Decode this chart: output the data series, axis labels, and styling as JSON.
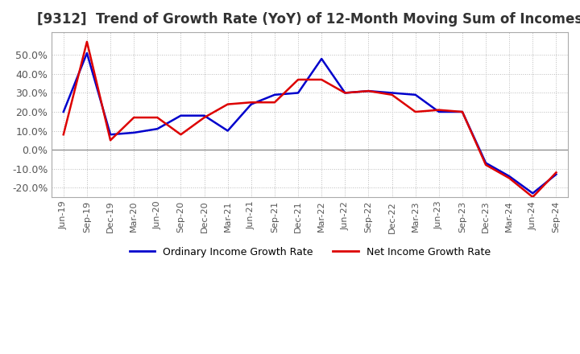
{
  "title": "[9312]  Trend of Growth Rate (YoY) of 12-Month Moving Sum of Incomes",
  "title_fontsize": 12,
  "ylim": [
    -25,
    62
  ],
  "yticks": [
    -20,
    -10,
    0,
    10,
    20,
    30,
    40,
    50
  ],
  "background_color": "#ffffff",
  "grid_color": "#bbbbbb",
  "ordinary_color": "#0000cc",
  "net_color": "#dd0000",
  "legend_labels": [
    "Ordinary Income Growth Rate",
    "Net Income Growth Rate"
  ],
  "x_labels": [
    "Jun-19",
    "Sep-19",
    "Dec-19",
    "Mar-20",
    "Jun-20",
    "Sep-20",
    "Dec-20",
    "Mar-21",
    "Jun-21",
    "Sep-21",
    "Dec-21",
    "Mar-22",
    "Jun-22",
    "Sep-22",
    "Dec-22",
    "Mar-23",
    "Jun-23",
    "Sep-23",
    "Dec-23",
    "Mar-24",
    "Jun-24",
    "Sep-24"
  ],
  "ordinary_income_growth": [
    20,
    51,
    8,
    9,
    11,
    18,
    18,
    10,
    24,
    29,
    30,
    48,
    30,
    31,
    30,
    29,
    20,
    20,
    -7,
    -14,
    -23,
    -13
  ],
  "net_income_growth": [
    8,
    57,
    5,
    17,
    17,
    8,
    17,
    24,
    25,
    25,
    37,
    37,
    30,
    31,
    29,
    20,
    21,
    20,
    -8,
    -15,
    -25,
    -12
  ]
}
